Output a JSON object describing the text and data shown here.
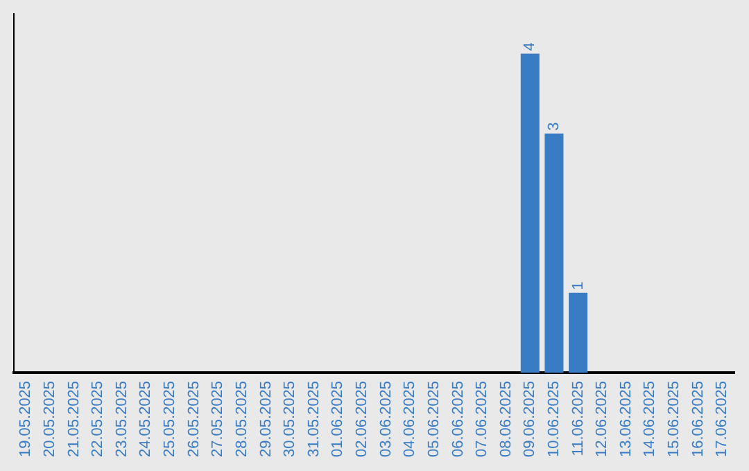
{
  "chart_data": {
    "type": "bar",
    "categories": [
      "19.05.2025",
      "20.05.2025",
      "21.05.2025",
      "22.05.2025",
      "23.05.2025",
      "24.05.2025",
      "25.05.2025",
      "26.05.2025",
      "27.05.2025",
      "28.05.2025",
      "29.05.2025",
      "30.05.2025",
      "31.05.2025",
      "01.06.2025",
      "02.06.2025",
      "03.06.2025",
      "04.06.2025",
      "05.06.2025",
      "06.06.2025",
      "07.06.2025",
      "08.06.2025",
      "09.06.2025",
      "10.06.2025",
      "11.06.2025",
      "12.06.2025",
      "13.06.2025",
      "14.06.2025",
      "15.06.2025",
      "16.06.2025",
      "17.06.2025"
    ],
    "values": [
      null,
      null,
      null,
      null,
      null,
      null,
      null,
      null,
      null,
      null,
      null,
      null,
      null,
      null,
      null,
      null,
      null,
      null,
      null,
      null,
      null,
      4,
      3,
      1,
      null,
      null,
      null,
      null,
      null,
      null
    ],
    "color": "#3a7cc4",
    "data_labels": true,
    "grid": false,
    "legend": false
  }
}
